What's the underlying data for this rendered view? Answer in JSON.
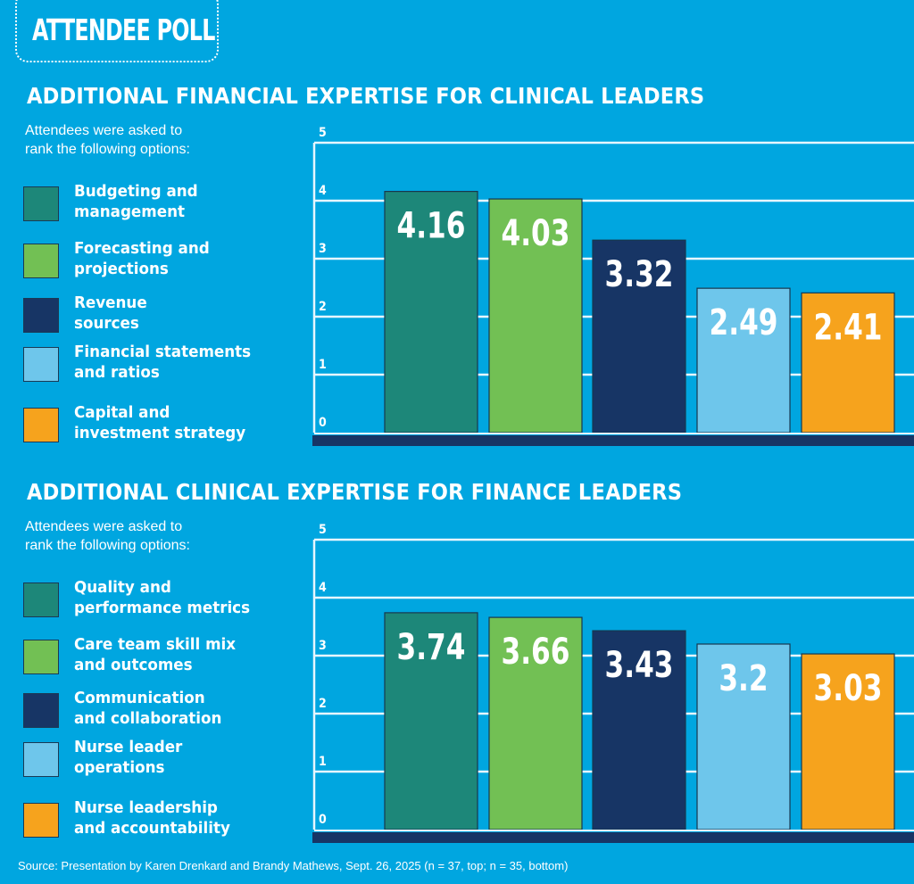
{
  "header": {
    "badge": "ATTENDEE POLL"
  },
  "sections": [
    {
      "title": "ADDITIONAL FINANCIAL EXPERTISE FOR CLINICAL LEADERS",
      "intro_line1": "Attendees were asked to",
      "intro_line2": "rank the following options:",
      "legend": [
        {
          "line1": "Budgeting and",
          "line2": "management",
          "color": "#1d8779"
        },
        {
          "line1": "Forecasting and",
          "line2": "projections",
          "color": "#72c054"
        },
        {
          "line1": "Revenue",
          "line2": "sources",
          "color": "#173565"
        },
        {
          "line1": "Financial statements",
          "line2": "and ratios",
          "color": "#6ec6eb"
        },
        {
          "line1": "Capital and",
          "line2": "investment strategy",
          "color": "#f6a31d"
        }
      ]
    },
    {
      "title": "ADDITIONAL CLINICAL EXPERTISE FOR FINANCE LEADERS",
      "intro_line1": "Attendees were asked to",
      "intro_line2": "rank the following options:",
      "legend": [
        {
          "line1": "Quality and",
          "line2": "performance metrics",
          "color": "#1d8779"
        },
        {
          "line1": "Care team skill mix",
          "line2": "and outcomes",
          "color": "#72c054"
        },
        {
          "line1": "Communication",
          "line2": "and collaboration",
          "color": "#173565"
        },
        {
          "line1": "Nurse leader",
          "line2": "operations",
          "color": "#6ec6eb"
        },
        {
          "line1": "Nurse leadership",
          "line2": "and accountability",
          "color": "#f6a31d"
        }
      ]
    }
  ],
  "colors": {
    "background": "#00a6e0",
    "baseline": "#173565",
    "grid": "#e6f6ff"
  },
  "source": "Source: Presentation by Karen Drenkard and Brandy Mathews, Sept. 26, 2025 (n = 37, top; n = 35, bottom)",
  "chart_data": [
    {
      "type": "bar",
      "title": "ADDITIONAL FINANCIAL EXPERTISE FOR CLINICAL LEADERS",
      "categories": [
        "Budgeting and management",
        "Forecasting and projections",
        "Revenue sources",
        "Financial statements and ratios",
        "Capital and investment strategy"
      ],
      "values": [
        4.16,
        4.03,
        3.32,
        2.49,
        2.41
      ],
      "value_labels": [
        "4.16",
        "4.03",
        "3.32",
        "2.49",
        "2.41"
      ],
      "colors": [
        "#1d8779",
        "#72c054",
        "#173565",
        "#6ec6eb",
        "#f6a31d"
      ],
      "yticks": [
        "0",
        "1",
        "2",
        "3",
        "4",
        "5"
      ],
      "ylim": [
        0,
        5
      ],
      "xlabel": "",
      "ylabel": "",
      "grid": true,
      "legend": "left"
    },
    {
      "type": "bar",
      "title": "ADDITIONAL CLINICAL EXPERTISE FOR FINANCE LEADERS",
      "categories": [
        "Quality and performance metrics",
        "Care team skill mix and outcomes",
        "Communication and collaboration",
        "Nurse leader operations",
        "Nurse leadership and accountability"
      ],
      "values": [
        3.74,
        3.66,
        3.43,
        3.2,
        3.03
      ],
      "value_labels": [
        "3.74",
        "3.66",
        "3.43",
        "3.2",
        "3.03"
      ],
      "colors": [
        "#1d8779",
        "#72c054",
        "#173565",
        "#6ec6eb",
        "#f6a31d"
      ],
      "yticks": [
        "0",
        "1",
        "2",
        "3",
        "4",
        "5"
      ],
      "ylim": [
        0,
        5
      ],
      "xlabel": "",
      "ylabel": "",
      "grid": true,
      "legend": "left"
    }
  ]
}
